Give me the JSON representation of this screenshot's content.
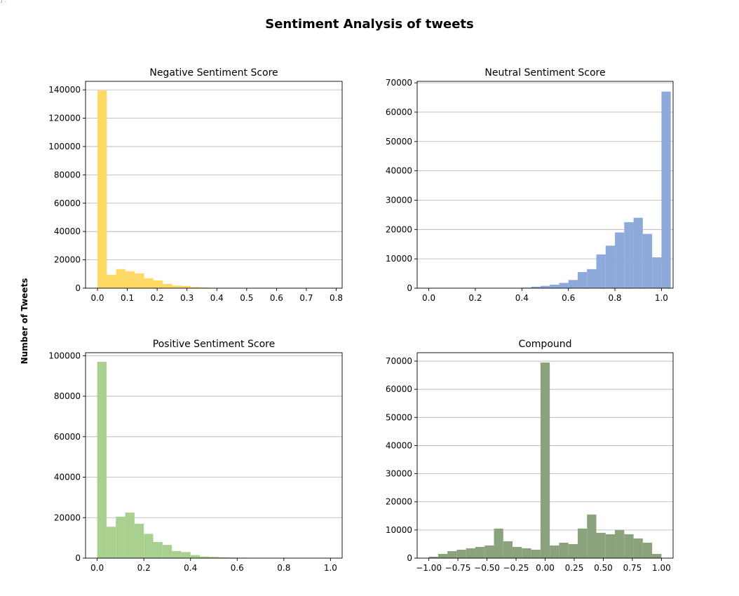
{
  "corner_mark": "] :",
  "figure": {
    "title": "Sentiment Analysis of tweets",
    "ylabel": "Number of Tweets"
  },
  "chart_data": [
    {
      "type": "bar",
      "title": "Negative Sentiment Score",
      "color": "#ffd966",
      "bin_start": 0.0,
      "bin_width": 0.0313,
      "values": [
        139500,
        9500,
        13500,
        12000,
        10500,
        7000,
        5500,
        3000,
        1800,
        1600,
        800,
        500,
        200,
        100,
        50,
        40,
        30,
        20,
        20,
        10,
        10,
        10,
        5,
        5,
        5
      ],
      "xlim": [
        -0.04,
        0.82
      ],
      "ylim": [
        0,
        146000
      ],
      "xticks": [
        0.0,
        0.1,
        0.2,
        0.3,
        0.4,
        0.5,
        0.6,
        0.7,
        0.8
      ],
      "xtick_labels": [
        "0.0",
        "0.1",
        "0.2",
        "0.3",
        "0.4",
        "0.5",
        "0.6",
        "0.7",
        "0.8"
      ],
      "yticks": [
        0,
        20000,
        40000,
        60000,
        80000,
        100000,
        120000,
        140000
      ],
      "ytick_labels": [
        "0",
        "20000",
        "40000",
        "60000",
        "80000",
        "100000",
        "120000",
        "140000"
      ],
      "grid": "y"
    },
    {
      "type": "bar",
      "title": "Neutral Sentiment Score",
      "color": "#8eaadb",
      "bin_start": 0.0,
      "bin_width": 0.04,
      "values": [
        0,
        0,
        0,
        0,
        0,
        0,
        0,
        0,
        0,
        0,
        200,
        500,
        800,
        1200,
        1800,
        2800,
        5500,
        6500,
        11500,
        14500,
        19000,
        22500,
        24000,
        18500,
        10500,
        67000
      ],
      "xlim": [
        -0.05,
        1.05
      ],
      "ylim": [
        0,
        70500
      ],
      "xticks": [
        0.0,
        0.2,
        0.4,
        0.6,
        0.8,
        1.0
      ],
      "xtick_labels": [
        "0.0",
        "0.2",
        "0.4",
        "0.6",
        "0.8",
        "1.0"
      ],
      "yticks": [
        0,
        10000,
        20000,
        30000,
        40000,
        50000,
        60000,
        70000
      ],
      "ytick_labels": [
        "0",
        "10000",
        "20000",
        "30000",
        "40000",
        "50000",
        "60000",
        "70000"
      ],
      "grid": "y"
    },
    {
      "type": "bar",
      "title": "Positive Sentiment Score",
      "color": "#a9d08e",
      "bin_start": 0.0,
      "bin_width": 0.04,
      "values": [
        97000,
        15500,
        20500,
        22500,
        17000,
        12000,
        8000,
        6500,
        3500,
        3000,
        1500,
        800,
        600,
        400,
        300,
        200,
        100,
        50,
        30,
        20,
        10,
        10,
        5,
        5,
        5
      ],
      "xlim": [
        -0.05,
        1.05
      ],
      "ylim": [
        0,
        101500
      ],
      "xticks": [
        0.0,
        0.2,
        0.4,
        0.6,
        0.8,
        1.0
      ],
      "xtick_labels": [
        "0.0",
        "0.2",
        "0.4",
        "0.6",
        "0.8",
        "1.0"
      ],
      "yticks": [
        0,
        20000,
        40000,
        60000,
        80000,
        100000
      ],
      "ytick_labels": [
        "0",
        "20000",
        "40000",
        "60000",
        "80000",
        "100000"
      ],
      "grid": "y"
    },
    {
      "type": "bar",
      "title": "Compound",
      "color": "#8ba37c",
      "bin_start": -1.0,
      "bin_width": 0.08,
      "values": [
        500,
        1500,
        2500,
        3000,
        3500,
        4000,
        4500,
        10500,
        6000,
        4000,
        3500,
        3000,
        69500,
        4500,
        5500,
        5000,
        10500,
        15500,
        9000,
        8500,
        10000,
        8500,
        7000,
        5500,
        1500
      ],
      "xlim": [
        -1.1,
        1.1
      ],
      "ylim": [
        0,
        73000
      ],
      "xticks": [
        -1.0,
        -0.75,
        -0.5,
        -0.25,
        0.0,
        0.25,
        0.5,
        0.75,
        1.0
      ],
      "xtick_labels": [
        "−1.00",
        "−0.75",
        "−0.50",
        "−0.25",
        "0.00",
        "0.25",
        "0.50",
        "0.75",
        "1.00"
      ],
      "yticks": [
        0,
        10000,
        20000,
        30000,
        40000,
        50000,
        60000,
        70000
      ],
      "ytick_labels": [
        "0",
        "10000",
        "20000",
        "30000",
        "40000",
        "50000",
        "60000",
        "70000"
      ],
      "grid": "y"
    }
  ]
}
